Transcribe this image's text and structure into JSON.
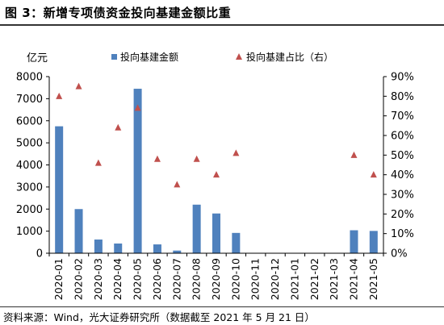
{
  "figure": {
    "title": "图 3：新增专项债资金投向基建金额比重",
    "source": "资料来源：Wind，光大证券研究所（数据截至 2021 年 5 月 21 日）"
  },
  "colors": {
    "bar": "#4f81bd",
    "marker": "#c0504d",
    "axis": "#000000"
  },
  "chart_data": {
    "type": "bar",
    "categories": [
      "2020-01",
      "2020-02",
      "2020-03",
      "2020-04",
      "2020-05",
      "2020-06",
      "2020-07",
      "2020-08",
      "2020-09",
      "2020-10",
      "2020-11",
      "2020-12",
      "2021-01",
      "2021-02",
      "2021-03",
      "2021-04",
      "2021-05"
    ],
    "series": [
      {
        "name": "投向基建金额",
        "type": "bar",
        "axis": "left",
        "values": [
          5750,
          2000,
          620,
          440,
          7450,
          400,
          120,
          2200,
          1800,
          920,
          null,
          null,
          null,
          null,
          null,
          1040,
          1010
        ]
      },
      {
        "name": "投向基建占比（右）",
        "type": "scatter",
        "axis": "right",
        "marker": "triangle",
        "values": [
          80,
          85,
          46,
          64,
          74,
          48,
          35,
          48,
          40,
          51,
          null,
          null,
          null,
          null,
          null,
          50,
          40
        ]
      }
    ],
    "y_left": {
      "unit": "亿元",
      "ylim": [
        0,
        8000
      ],
      "ticks": [
        "0",
        "1000",
        "2000",
        "3000",
        "4000",
        "5000",
        "6000",
        "7000",
        "8000"
      ]
    },
    "y_right": {
      "ylim": [
        0,
        90
      ],
      "ticks": [
        "0%",
        "10%",
        "20%",
        "30%",
        "40%",
        "50%",
        "60%",
        "70%",
        "80%",
        "90%"
      ]
    },
    "legend_position": "top",
    "grid": false
  }
}
